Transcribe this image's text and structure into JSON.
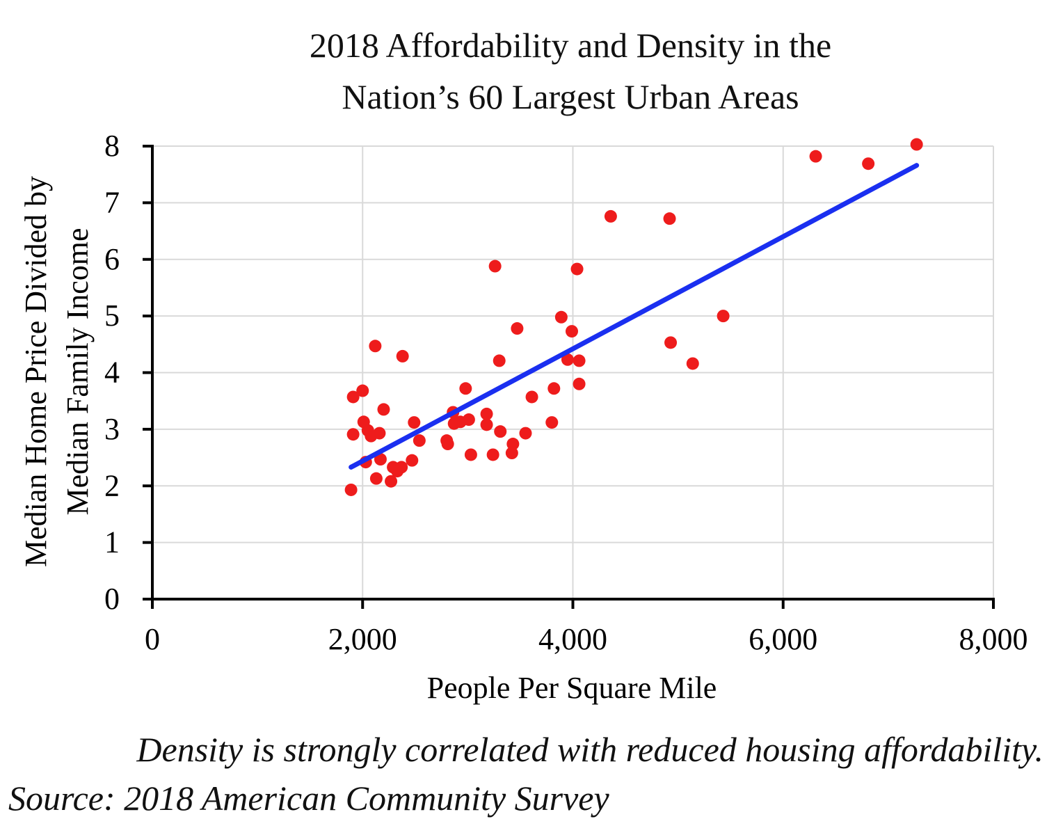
{
  "chart_data": {
    "type": "scatter",
    "title_lines": [
      "2018 Affordability and Density in the",
      "Nation’s 60 Largest Urban Areas"
    ],
    "xlabel": "People Per Square Mile",
    "ylabel_lines": [
      "Median Home Price Divided by",
      "Median Family Income"
    ],
    "xlim": [
      0,
      8000
    ],
    "ylim": [
      0,
      8
    ],
    "xticks": [
      0,
      2000,
      4000,
      6000,
      8000
    ],
    "xtick_labels": [
      "0",
      "2,000",
      "4,000",
      "6,000",
      "8,000"
    ],
    "yticks": [
      0,
      1,
      2,
      3,
      4,
      5,
      6,
      7,
      8
    ],
    "ytick_labels": [
      "0",
      "1",
      "2",
      "3",
      "4",
      "5",
      "6",
      "7",
      "8"
    ],
    "grid": true,
    "legend": "none",
    "points": [
      {
        "x": 1890,
        "y": 1.93
      },
      {
        "x": 1910,
        "y": 3.57
      },
      {
        "x": 1910,
        "y": 2.91
      },
      {
        "x": 2000,
        "y": 3.68
      },
      {
        "x": 2010,
        "y": 3.13
      },
      {
        "x": 2030,
        "y": 2.42
      },
      {
        "x": 2050,
        "y": 2.98
      },
      {
        "x": 2080,
        "y": 2.88
      },
      {
        "x": 2120,
        "y": 4.47
      },
      {
        "x": 2130,
        "y": 2.13
      },
      {
        "x": 2160,
        "y": 2.93
      },
      {
        "x": 2170,
        "y": 2.47
      },
      {
        "x": 2200,
        "y": 3.35
      },
      {
        "x": 2270,
        "y": 2.08
      },
      {
        "x": 2290,
        "y": 2.33
      },
      {
        "x": 2330,
        "y": 2.26
      },
      {
        "x": 2370,
        "y": 2.33
      },
      {
        "x": 2380,
        "y": 4.29
      },
      {
        "x": 2470,
        "y": 2.45
      },
      {
        "x": 2490,
        "y": 3.12
      },
      {
        "x": 2540,
        "y": 2.8
      },
      {
        "x": 2800,
        "y": 2.8
      },
      {
        "x": 2810,
        "y": 2.74
      },
      {
        "x": 2860,
        "y": 3.3
      },
      {
        "x": 2870,
        "y": 3.1
      },
      {
        "x": 2930,
        "y": 3.13
      },
      {
        "x": 2980,
        "y": 3.72
      },
      {
        "x": 3010,
        "y": 3.17
      },
      {
        "x": 3030,
        "y": 2.55
      },
      {
        "x": 3180,
        "y": 3.27
      },
      {
        "x": 3180,
        "y": 3.08
      },
      {
        "x": 3240,
        "y": 2.55
      },
      {
        "x": 3260,
        "y": 5.88
      },
      {
        "x": 3300,
        "y": 4.21
      },
      {
        "x": 3310,
        "y": 2.96
      },
      {
        "x": 3420,
        "y": 2.58
      },
      {
        "x": 3430,
        "y": 2.74
      },
      {
        "x": 3470,
        "y": 4.78
      },
      {
        "x": 3550,
        "y": 2.93
      },
      {
        "x": 3610,
        "y": 3.57
      },
      {
        "x": 3800,
        "y": 3.12
      },
      {
        "x": 3820,
        "y": 3.72
      },
      {
        "x": 3890,
        "y": 4.98
      },
      {
        "x": 3950,
        "y": 4.23
      },
      {
        "x": 3990,
        "y": 4.73
      },
      {
        "x": 4040,
        "y": 5.83
      },
      {
        "x": 4060,
        "y": 4.21
      },
      {
        "x": 4060,
        "y": 3.8
      },
      {
        "x": 4360,
        "y": 6.76
      },
      {
        "x": 4920,
        "y": 6.72
      },
      {
        "x": 4930,
        "y": 4.53
      },
      {
        "x": 5140,
        "y": 4.16
      },
      {
        "x": 5430,
        "y": 5.0
      },
      {
        "x": 6310,
        "y": 7.82
      },
      {
        "x": 6810,
        "y": 7.69
      },
      {
        "x": 7270,
        "y": 8.03
      }
    ],
    "trendline": {
      "x": [
        1890,
        7270
      ],
      "y": [
        2.33,
        7.66
      ]
    },
    "colors": {
      "points": "#ee1c1c",
      "trendline": "#1a2ff0",
      "grid": "#d9d9d9",
      "axis": "#000000"
    }
  },
  "caption": "Density is strongly correlated with reduced housing affordability.",
  "source": "Source: 2018 American Community Survey"
}
